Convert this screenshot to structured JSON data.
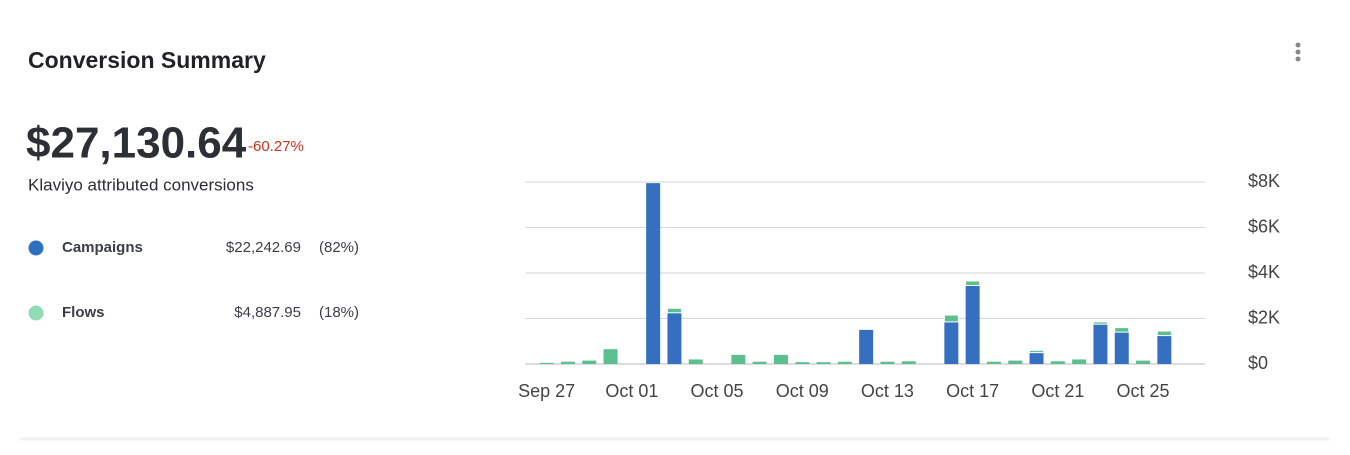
{
  "header": {
    "title": "Conversion Summary"
  },
  "summary": {
    "total": "$27,130.64",
    "change": "-60.27%",
    "caption": "Klaviyo attributed conversions"
  },
  "breakdown": [
    {
      "name": "Campaigns",
      "amount": "$22,242.69",
      "share": "(82%)",
      "color": "#2f6fc0"
    },
    {
      "name": "Flows",
      "amount": "$4,887.95",
      "share": "(18%)",
      "color": "#8fdcb7"
    }
  ],
  "chart_data": {
    "type": "stacked_bar",
    "categories": [
      "Sep 27",
      null,
      null,
      null,
      "Oct 01",
      null,
      null,
      null,
      "Oct 05",
      null,
      null,
      null,
      "Oct 09",
      null,
      null,
      null,
      "Oct 13",
      null,
      null,
      null,
      "Oct 17",
      null,
      null,
      null,
      "Oct 21",
      null,
      null,
      null,
      "Oct 25",
      null
    ],
    "series": [
      {
        "name": "Campaigns",
        "color": "#3570c0",
        "values": [
          0,
          0,
          0,
          0,
          0,
          7950,
          2250,
          0,
          0,
          0,
          0,
          0,
          0,
          0,
          0,
          1500,
          0,
          0,
          0,
          1850,
          3450,
          0,
          0,
          500,
          0,
          0,
          1750,
          1400,
          0,
          1250
        ]
      },
      {
        "name": "Flows",
        "color": "#5cbf8e",
        "values": [
          50,
          100,
          150,
          650,
          0,
          0,
          200,
          200,
          0,
          400,
          100,
          400,
          80,
          80,
          100,
          0,
          100,
          120,
          0,
          300,
          200,
          100,
          150,
          100,
          120,
          200,
          100,
          200,
          150,
          200
        ]
      }
    ],
    "ylim": [
      0,
      8000
    ],
    "yticks": [
      {
        "value": 0,
        "label": "$0"
      },
      {
        "value": 2000,
        "label": "$2K"
      },
      {
        "value": 4000,
        "label": "$4K"
      },
      {
        "value": 6000,
        "label": "$6K"
      },
      {
        "value": 8000,
        "label": "$8K"
      }
    ],
    "grid": true,
    "axis_side": "right"
  }
}
